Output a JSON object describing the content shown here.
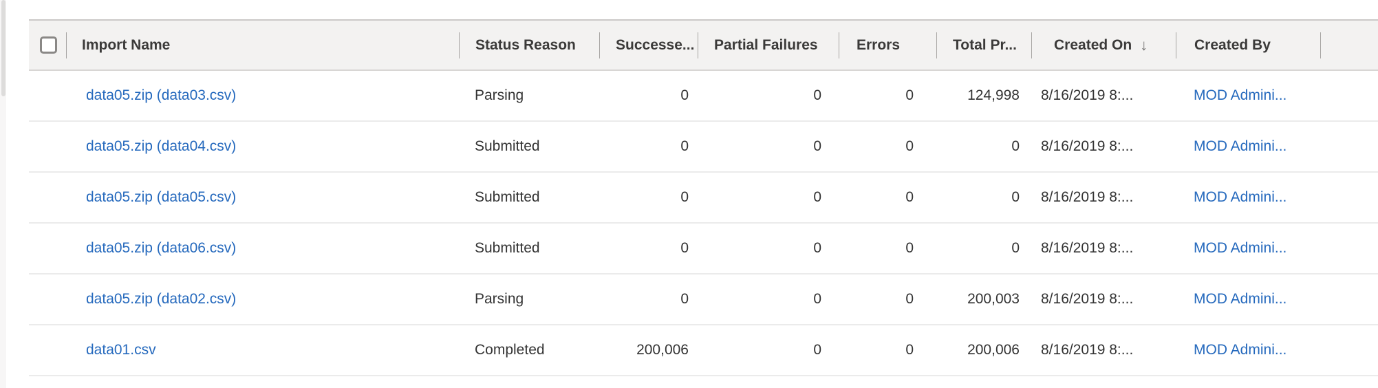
{
  "colors": {
    "link": "#2569bd",
    "header_background": "#f3f2f1",
    "header_text": "#3b3a39",
    "cell_text": "#333333",
    "row_border": "#ebebeb",
    "header_border": "#cbc9c7",
    "column_separator": "#a7a5a3",
    "scrollbar_thumb": "#dddcdb"
  },
  "grid": {
    "headers": [
      {
        "id": "import_name",
        "label": "Import Name"
      },
      {
        "id": "status_reason",
        "label": "Status Reason"
      },
      {
        "id": "successes",
        "label": "Successe..."
      },
      {
        "id": "partial_failures",
        "label": "Partial Failures"
      },
      {
        "id": "errors",
        "label": "Errors"
      },
      {
        "id": "total_processed",
        "label": "Total Pr..."
      },
      {
        "id": "created_on",
        "label": "Created On",
        "sort_icon": "↓"
      },
      {
        "id": "created_by",
        "label": "Created By"
      }
    ],
    "rows": [
      {
        "import_name": "data05.zip (data03.csv)",
        "status_reason": "Parsing",
        "successes": "0",
        "partial_failures": "0",
        "errors": "0",
        "total_processed": "124,998",
        "created_on": "8/16/2019 8:...",
        "created_by": "MOD Admini..."
      },
      {
        "import_name": "data05.zip (data04.csv)",
        "status_reason": "Submitted",
        "successes": "0",
        "partial_failures": "0",
        "errors": "0",
        "total_processed": "0",
        "created_on": "8/16/2019 8:...",
        "created_by": "MOD Admini..."
      },
      {
        "import_name": "data05.zip (data05.csv)",
        "status_reason": "Submitted",
        "successes": "0",
        "partial_failures": "0",
        "errors": "0",
        "total_processed": "0",
        "created_on": "8/16/2019 8:...",
        "created_by": "MOD Admini..."
      },
      {
        "import_name": "data05.zip (data06.csv)",
        "status_reason": "Submitted",
        "successes": "0",
        "partial_failures": "0",
        "errors": "0",
        "total_processed": "0",
        "created_on": "8/16/2019 8:...",
        "created_by": "MOD Admini..."
      },
      {
        "import_name": "data05.zip (data02.csv)",
        "status_reason": "Parsing",
        "successes": "0",
        "partial_failures": "0",
        "errors": "0",
        "total_processed": "200,003",
        "created_on": "8/16/2019 8:...",
        "created_by": "MOD Admini..."
      },
      {
        "import_name": "data01.csv",
        "status_reason": "Completed",
        "successes": "200,006",
        "partial_failures": "0",
        "errors": "0",
        "total_processed": "200,006",
        "created_on": "8/16/2019 8:...",
        "created_by": "MOD Admini..."
      }
    ]
  }
}
